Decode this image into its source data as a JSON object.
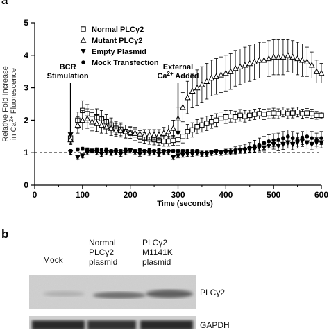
{
  "panel_a": {
    "label": "a",
    "chart_data": {
      "type": "line",
      "xlabel": "Time (seconds)",
      "ylabel": "Relative Fold Increase in Ca2+ Fluorescence",
      "ylabel_lines": [
        "Relative Fold Increase",
        "in Ca",
        "Fluorescence"
      ],
      "ylabel_sup": "2+",
      "xlim": [
        0,
        600
      ],
      "ylim": [
        0,
        5
      ],
      "x_ticks": [
        0,
        100,
        200,
        300,
        400,
        500,
        600
      ],
      "y_ticks": [
        0,
        1,
        2,
        3,
        4,
        5
      ],
      "baseline": 1,
      "legend_position": "top-left",
      "annotations": [
        {
          "lines": [
            "BCR",
            "Stimulation"
          ],
          "x": 75,
          "arrow_to_y": 1.3
        },
        {
          "lines": [
            "External",
            "Ca",
            " Added"
          ],
          "sup": "2+",
          "x": 300,
          "arrow_to_y": 1.35
        }
      ],
      "series": [
        {
          "name": "Normal PLCγ2",
          "marker": "open-square",
          "x": [
            75,
            90,
            100,
            110,
            120,
            130,
            140,
            150,
            160,
            170,
            180,
            190,
            200,
            210,
            220,
            230,
            240,
            250,
            260,
            270,
            280,
            290,
            300,
            310,
            320,
            330,
            340,
            350,
            360,
            370,
            380,
            390,
            400,
            410,
            420,
            430,
            440,
            450,
            460,
            470,
            480,
            490,
            500,
            510,
            520,
            530,
            540,
            550,
            560,
            570,
            580,
            590,
            600
          ],
          "y": [
            1.45,
            2.0,
            2.3,
            2.2,
            2.05,
            2.1,
            2.05,
            1.95,
            1.85,
            1.75,
            1.72,
            1.65,
            1.6,
            1.55,
            1.5,
            1.45,
            1.42,
            1.4,
            1.38,
            1.35,
            1.35,
            1.38,
            1.4,
            1.5,
            1.65,
            1.7,
            1.8,
            1.85,
            1.9,
            1.95,
            2.0,
            2.05,
            2.1,
            2.12,
            2.1,
            2.15,
            2.12,
            2.15,
            2.18,
            2.2,
            2.18,
            2.2,
            2.22,
            2.2,
            2.25,
            2.2,
            2.22,
            2.25,
            2.2,
            2.22,
            2.2,
            2.15,
            2.15
          ],
          "err": [
            0.15,
            0.25,
            0.3,
            0.28,
            0.28,
            0.25,
            0.25,
            0.22,
            0.22,
            0.2,
            0.2,
            0.2,
            0.18,
            0.18,
            0.18,
            0.16,
            0.16,
            0.16,
            0.15,
            0.15,
            0.15,
            0.15,
            0.18,
            0.2,
            0.22,
            0.22,
            0.22,
            0.22,
            0.22,
            0.2,
            0.2,
            0.2,
            0.2,
            0.18,
            0.18,
            0.18,
            0.18,
            0.16,
            0.16,
            0.16,
            0.16,
            0.15,
            0.15,
            0.15,
            0.15,
            0.15,
            0.15,
            0.15,
            0.14,
            0.14,
            0.14,
            0.12,
            0.1
          ]
        },
        {
          "name": "Mutant PLCγ2",
          "marker": "open-triangle",
          "x": [
            75,
            90,
            100,
            110,
            120,
            130,
            140,
            150,
            160,
            170,
            180,
            190,
            200,
            210,
            220,
            230,
            240,
            250,
            260,
            270,
            280,
            290,
            300,
            310,
            320,
            330,
            340,
            350,
            360,
            370,
            380,
            390,
            400,
            410,
            420,
            430,
            440,
            450,
            460,
            470,
            480,
            490,
            500,
            510,
            520,
            530,
            540,
            550,
            560,
            570,
            580,
            590,
            600
          ],
          "y": [
            1.4,
            1.85,
            2.0,
            2.05,
            1.95,
            1.9,
            1.85,
            1.8,
            1.75,
            1.7,
            1.68,
            1.65,
            1.62,
            1.6,
            1.58,
            1.55,
            1.55,
            1.55,
            1.55,
            1.6,
            1.65,
            1.75,
            2.05,
            2.4,
            2.7,
            2.9,
            3.0,
            3.1,
            3.2,
            3.3,
            3.35,
            3.4,
            3.45,
            3.5,
            3.6,
            3.65,
            3.7,
            3.75,
            3.8,
            3.85,
            3.85,
            3.9,
            3.95,
            3.95,
            3.95,
            4.0,
            3.95,
            3.9,
            3.85,
            3.8,
            3.7,
            3.5,
            3.45
          ],
          "err": [
            0.15,
            0.25,
            0.3,
            0.3,
            0.28,
            0.25,
            0.25,
            0.22,
            0.22,
            0.2,
            0.2,
            0.2,
            0.18,
            0.18,
            0.18,
            0.16,
            0.16,
            0.16,
            0.16,
            0.18,
            0.2,
            0.25,
            0.35,
            0.45,
            0.5,
            0.52,
            0.55,
            0.55,
            0.55,
            0.55,
            0.55,
            0.55,
            0.55,
            0.55,
            0.55,
            0.55,
            0.55,
            0.55,
            0.55,
            0.55,
            0.55,
            0.55,
            0.55,
            0.55,
            0.55,
            0.5,
            0.5,
            0.5,
            0.5,
            0.45,
            0.4,
            0.35,
            0.3
          ]
        },
        {
          "name": "Empty Plasmid",
          "marker": "filled-down-triangle",
          "x": [
            75,
            90,
            100,
            110,
            120,
            130,
            140,
            150,
            160,
            170,
            180,
            190,
            200,
            210,
            220,
            230,
            240,
            250,
            260,
            270,
            280,
            290,
            300,
            310,
            320,
            330,
            340,
            350,
            360,
            370,
            380,
            390,
            400,
            410,
            420,
            430,
            440,
            450,
            460,
            470,
            480,
            490,
            500,
            510,
            520,
            530,
            540,
            550,
            560,
            570,
            580,
            590,
            600
          ],
          "y": [
            1.0,
            0.85,
            0.9,
            1.0,
            1.05,
            1.0,
            0.95,
            1.0,
            0.98,
            1.0,
            0.95,
            1.0,
            1.05,
            1.0,
            0.95,
            1.0,
            0.98,
            1.0,
            0.95,
            1.0,
            1.0,
            0.85,
            0.9,
            0.92,
            0.95,
            0.95,
            0.98,
            0.95,
            0.95,
            0.98,
            1.0,
            0.98,
            1.0,
            1.0,
            1.02,
            1.05,
            1.05,
            1.1,
            1.1,
            1.15,
            1.15,
            1.2,
            1.25,
            1.2,
            1.25,
            1.3,
            1.25,
            1.3,
            1.35,
            1.3,
            1.25,
            1.3,
            1.3
          ],
          "err": [
            0.05,
            0.06,
            0.06,
            0.06,
            0.06,
            0.06,
            0.06,
            0.06,
            0.06,
            0.06,
            0.06,
            0.06,
            0.06,
            0.06,
            0.06,
            0.06,
            0.06,
            0.06,
            0.06,
            0.06,
            0.06,
            0.06,
            0.06,
            0.06,
            0.06,
            0.06,
            0.06,
            0.06,
            0.06,
            0.06,
            0.06,
            0.06,
            0.06,
            0.06,
            0.06,
            0.06,
            0.06,
            0.08,
            0.08,
            0.1,
            0.1,
            0.12,
            0.14,
            0.14,
            0.15,
            0.16,
            0.16,
            0.16,
            0.16,
            0.16,
            0.16,
            0.16,
            0.15
          ]
        },
        {
          "name": "Mock Transfection",
          "marker": "filled-circle",
          "x": [
            75,
            90,
            100,
            110,
            120,
            130,
            140,
            150,
            160,
            170,
            180,
            190,
            200,
            210,
            220,
            230,
            240,
            250,
            260,
            270,
            280,
            290,
            300,
            310,
            320,
            330,
            340,
            350,
            360,
            370,
            380,
            390,
            400,
            410,
            420,
            430,
            440,
            450,
            460,
            470,
            480,
            490,
            500,
            510,
            520,
            530,
            540,
            550,
            560,
            570,
            580,
            590,
            600
          ],
          "y": [
            1.05,
            1.1,
            1.12,
            1.1,
            1.05,
            1.1,
            1.08,
            1.1,
            1.05,
            1.08,
            1.05,
            1.1,
            1.08,
            1.05,
            1.08,
            1.05,
            1.08,
            1.05,
            1.08,
            1.05,
            1.05,
            1.05,
            1.05,
            1.05,
            1.05,
            1.05,
            1.05,
            1.0,
            1.0,
            1.02,
            1.05,
            1.02,
            1.05,
            1.05,
            1.08,
            1.1,
            1.12,
            1.15,
            1.2,
            1.25,
            1.3,
            1.35,
            1.38,
            1.4,
            1.45,
            1.5,
            1.45,
            1.4,
            1.45,
            1.5,
            1.45,
            1.4,
            1.45
          ],
          "err": [
            0.05,
            0.05,
            0.05,
            0.05,
            0.05,
            0.05,
            0.05,
            0.05,
            0.05,
            0.05,
            0.05,
            0.05,
            0.05,
            0.05,
            0.05,
            0.05,
            0.05,
            0.05,
            0.05,
            0.05,
            0.05,
            0.05,
            0.05,
            0.05,
            0.05,
            0.05,
            0.05,
            0.05,
            0.05,
            0.05,
            0.05,
            0.05,
            0.06,
            0.08,
            0.1,
            0.12,
            0.14,
            0.16,
            0.18,
            0.2,
            0.2,
            0.2,
            0.2,
            0.2,
            0.2,
            0.2,
            0.2,
            0.2,
            0.2,
            0.2,
            0.2,
            0.2,
            0.2
          ]
        }
      ]
    }
  },
  "panel_b": {
    "label": "b",
    "lanes": [
      {
        "lines": [
          "Mock"
        ]
      },
      {
        "lines": [
          "Normal",
          "PLCγ2",
          "plasmid"
        ]
      },
      {
        "lines": [
          "PLCγ2",
          "M1141K",
          "plasmid"
        ]
      }
    ],
    "bands": [
      {
        "label": "PLCγ2"
      },
      {
        "label": "GAPDH"
      }
    ]
  }
}
